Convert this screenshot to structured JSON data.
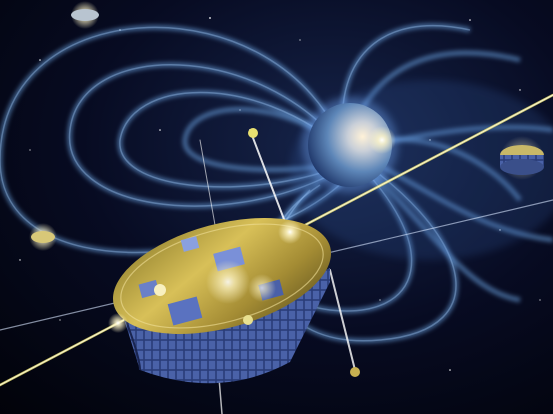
{
  "scene": {
    "subject": "satellite-constellation-magnetosphere",
    "colors": {
      "space": "#02030c",
      "field_lines": "#6fa8e8",
      "earth": "#8fb4d8",
      "sun_glow": "#fff6d0",
      "gold_foil": "#c8a93a",
      "solar_panel": "#3b4f8a",
      "beam": "#e8e070"
    },
    "icons": [
      "earth-icon",
      "satellite-icon"
    ]
  }
}
